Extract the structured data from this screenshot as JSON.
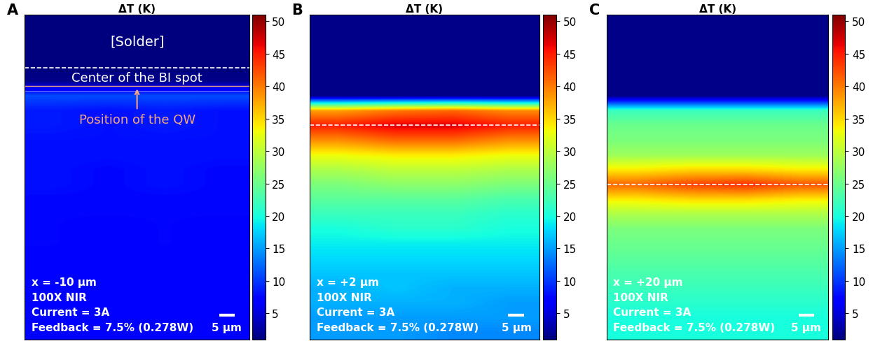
{
  "chart_data": [
    {
      "type": "heatmap",
      "panel_label": "A",
      "title": "ΔT (K)",
      "color": "jet",
      "tick_labels": false,
      "colorbar_range": [
        1,
        51
      ],
      "colorbar_ticks": [
        5,
        10,
        15,
        20,
        25,
        30,
        35,
        40,
        45,
        50
      ],
      "labels": [
        "[Solder]",
        "Center of the BI spot",
        "Position of the QW"
      ],
      "annotations": [
        "x = -10 μm",
        "100X NIR",
        "Current = 3A",
        "Feedback = 7.5% (0.278W)"
      ],
      "scale_bar": "5 μm",
      "cells": [
        [
          1,
          1,
          1,
          1
        ],
        [
          1,
          1,
          1,
          1
        ],
        [
          1,
          1,
          1,
          1
        ],
        [
          1,
          1,
          1,
          1
        ],
        [
          1.5,
          1.5,
          1.5,
          1.5
        ],
        [
          11,
          11,
          11,
          11
        ],
        [
          8.5,
          8,
          8.5,
          8
        ],
        [
          8.5,
          8,
          8.5,
          8
        ],
        [
          8,
          8,
          8,
          8
        ],
        [
          8,
          8,
          8,
          8
        ],
        [
          8,
          7.5,
          8,
          7.5
        ],
        [
          8,
          7.5,
          8,
          7.5
        ],
        [
          7.5,
          7.5,
          7.5,
          7.5
        ],
        [
          7.5,
          7.5,
          7.5,
          7.5
        ],
        [
          7.5,
          7,
          7.5,
          7
        ],
        [
          7.5,
          7,
          7.5,
          7
        ],
        [
          7,
          7,
          7,
          7
        ],
        [
          7,
          7,
          7,
          7
        ],
        [
          7,
          7,
          7,
          7
        ],
        [
          7,
          7,
          7,
          7
        ],
        [
          7,
          6.5,
          7,
          6.5
        ],
        [
          7,
          6.5,
          7,
          6.5
        ]
      ]
    },
    {
      "type": "heatmap",
      "panel_label": "B",
      "title": "ΔT (K)",
      "color": "jet",
      "tick_labels": false,
      "colorbar_range": [
        1,
        51
      ],
      "colorbar_ticks": [
        5,
        10,
        15,
        20,
        25,
        30,
        35,
        40,
        45,
        50
      ],
      "annotations": [
        "x = +2 μm",
        "100X NIR",
        "Current = 3A",
        "Feedback = 7.5% (0.278W)"
      ],
      "scale_bar": "5 μm",
      "cells": [
        [
          1.5,
          1.5,
          1.5,
          1.5
        ],
        [
          1.5,
          1.5,
          1.5,
          1.5
        ],
        [
          1.5,
          1.5,
          1.5,
          1.5
        ],
        [
          1.5,
          1.5,
          1.5,
          1.5
        ],
        [
          1.5,
          1.5,
          1.5,
          1.5
        ],
        [
          1.5,
          1.5,
          1.5,
          1.5
        ],
        [
          38,
          40,
          41,
          39
        ],
        [
          45,
          47,
          47,
          45
        ],
        [
          39,
          41,
          41,
          39
        ],
        [
          33,
          34,
          34,
          33
        ],
        [
          29,
          30,
          30,
          29
        ],
        [
          26,
          27,
          27,
          26
        ],
        [
          24,
          24,
          24,
          23
        ],
        [
          22,
          22,
          22,
          21
        ],
        [
          20,
          21,
          21,
          20
        ],
        [
          19,
          19,
          19,
          19
        ],
        [
          18,
          18,
          18,
          18
        ],
        [
          17,
          17,
          17,
          17
        ],
        [
          16,
          17,
          16,
          16
        ],
        [
          16,
          16,
          16,
          15
        ],
        [
          15,
          15,
          15,
          15
        ],
        [
          15,
          15,
          14,
          14
        ]
      ]
    },
    {
      "type": "heatmap",
      "panel_label": "C",
      "title": "ΔT (K)",
      "color": "jet",
      "tick_labels": false,
      "colorbar_range": [
        1,
        51
      ],
      "colorbar_ticks": [
        5,
        10,
        15,
        20,
        25,
        30,
        35,
        40,
        45,
        50
      ],
      "annotations": [
        "x = +20 μm",
        "100X NIR",
        "Current = 3A",
        "Feedback = 7.5% (0.278W)"
      ],
      "scale_bar": "5 μm",
      "cells": [
        [
          1.5,
          1.5,
          1.5,
          1.5
        ],
        [
          1.5,
          1.5,
          1.5,
          1.5
        ],
        [
          1.5,
          1.5,
          1.5,
          1.5
        ],
        [
          1.5,
          1.5,
          1.5,
          1.5
        ],
        [
          1.5,
          1.5,
          1.5,
          1.5
        ],
        [
          1.5,
          1.5,
          1.5,
          1.5
        ],
        [
          22,
          22,
          22,
          22
        ],
        [
          25,
          25,
          25,
          25
        ],
        [
          26,
          26,
          26,
          26
        ],
        [
          28,
          28,
          28,
          28
        ],
        [
          34,
          35,
          35,
          34
        ],
        [
          41,
          43,
          44,
          42
        ],
        [
          34,
          35,
          35,
          34
        ],
        [
          29,
          29,
          29,
          29
        ],
        [
          26,
          26,
          26,
          26
        ],
        [
          25,
          25,
          25,
          25
        ],
        [
          24,
          24,
          24,
          24
        ],
        [
          23,
          23,
          23,
          23
        ],
        [
          22,
          22,
          22,
          22
        ],
        [
          21,
          21,
          21,
          21
        ],
        [
          20,
          20,
          20,
          20
        ],
        [
          20,
          20,
          20,
          20
        ]
      ]
    }
  ]
}
